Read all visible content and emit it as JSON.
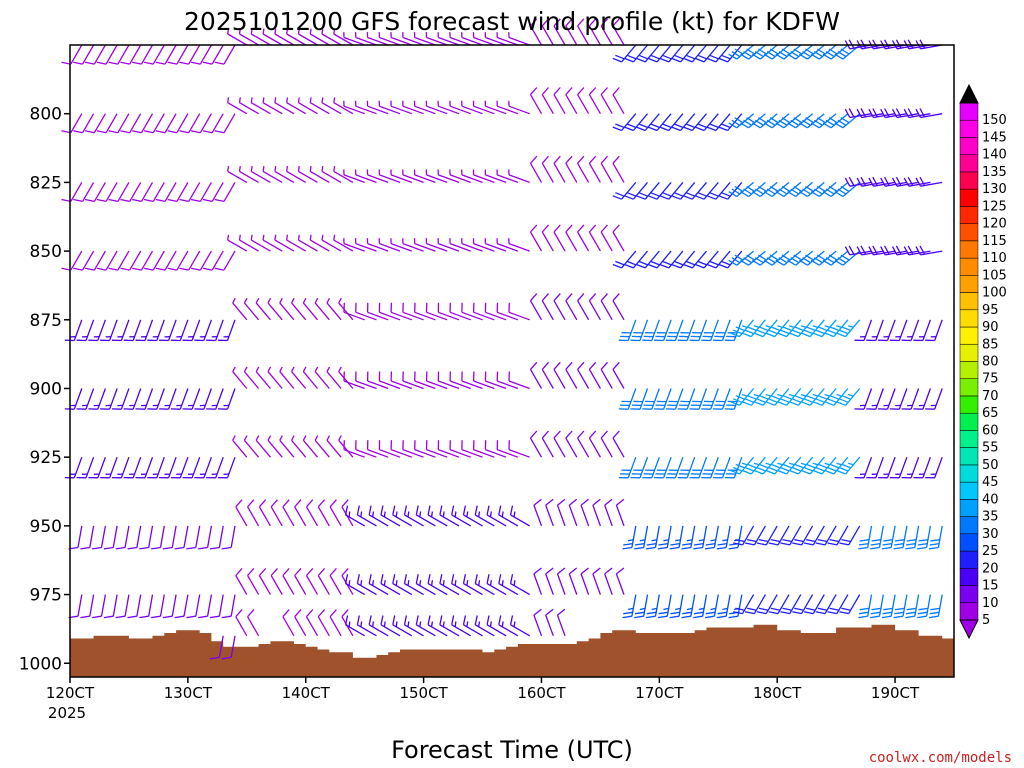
{
  "chart_data": {
    "type": "wind_barb_profile",
    "title": "2025101200 GFS forecast wind profile (kt) for KDFW",
    "xlabel": "Forecast Time (UTC)",
    "ylabel": "",
    "credit": "coolwx.com/models",
    "units": "kt",
    "x_range": [
      120,
      195
    ],
    "x_ticks": [
      {
        "value": 120,
        "label": "120CT",
        "sublabel": "2025"
      },
      {
        "value": 130,
        "label": "130CT"
      },
      {
        "value": 140,
        "label": "140CT"
      },
      {
        "value": 150,
        "label": "150CT"
      },
      {
        "value": 160,
        "label": "160CT"
      },
      {
        "value": 170,
        "label": "170CT"
      },
      {
        "value": 180,
        "label": "180CT"
      },
      {
        "value": 190,
        "label": "190CT"
      }
    ],
    "y_range_hpa": [
      775,
      1005
    ],
    "y_ticks": [
      800,
      825,
      850,
      875,
      900,
      925,
      950,
      975,
      1000
    ],
    "levels_hpa": [
      775,
      800,
      825,
      850,
      875,
      900,
      925,
      950,
      975,
      990
    ],
    "time_step": 1,
    "colorbar": {
      "levels": [
        5,
        10,
        15,
        20,
        25,
        30,
        35,
        40,
        45,
        50,
        55,
        60,
        65,
        70,
        75,
        80,
        85,
        90,
        95,
        100,
        105,
        110,
        115,
        120,
        125,
        130,
        135,
        140,
        145,
        150
      ],
      "colors": [
        "#a000e6",
        "#7a00f0",
        "#4b00f5",
        "#1e1eff",
        "#0050ff",
        "#0078ff",
        "#00a0ff",
        "#00c8ff",
        "#00dcdc",
        "#00e6b4",
        "#00f08c",
        "#00f050",
        "#32f000",
        "#78f000",
        "#b4f000",
        "#e6f000",
        "#fff000",
        "#ffdc00",
        "#ffc000",
        "#ffa000",
        "#ff8c00",
        "#ff7800",
        "#ff5000",
        "#ff2800",
        "#ff0000",
        "#ff0050",
        "#ff0096",
        "#ff00c8",
        "#ff00e6",
        "#e600ff"
      ]
    },
    "terrain": {
      "color": "#a0522d",
      "surface_pressure_hpa": [
        991,
        991,
        990,
        990,
        990,
        991,
        991,
        990,
        989,
        988,
        988,
        989,
        992,
        994,
        994,
        994,
        993,
        992,
        992,
        993,
        994,
        995,
        996,
        996,
        998,
        998,
        997,
        996,
        995,
        995,
        995,
        995,
        995,
        995,
        995,
        996,
        995,
        994,
        993,
        993,
        993,
        993,
        993,
        992,
        991,
        989,
        988,
        988,
        989,
        989,
        989,
        989,
        989,
        988,
        987,
        987,
        987,
        987,
        986,
        986,
        988,
        988,
        989,
        989,
        989,
        987,
        987,
        987,
        986,
        986,
        988,
        988,
        990,
        990,
        991,
        993
      ]
    },
    "barb_layers": [
      {
        "name": "upper",
        "levels": "775-850",
        "speed_kt_by_time_group": {
          "120-135": 8,
          "135-145": 4,
          "145-160": 6,
          "160-168": 8,
          "168-178": 20,
          "178-188": 30,
          "188-195": 18
        },
        "direction_deg_by_time_group": {
          "120-135": 210,
          "135-145": 300,
          "145-160": 290,
          "160-168": 330,
          "168-178": 220,
          "178-188": 230,
          "188-195": 260
        }
      },
      {
        "name": "middle",
        "levels": "875-925",
        "speed_kt_by_time_group": {
          "120-135": 15,
          "135-145": 6,
          "145-160": 8,
          "160-168": 12,
          "168-178": 30,
          "178-188": 35,
          "188-195": 15
        },
        "direction_deg_by_time_group": {
          "120-135": 200,
          "135-145": 320,
          "145-160": 290,
          "160-168": 330,
          "168-178": 200,
          "178-188": 220,
          "188-195": 200
        }
      },
      {
        "name": "lower",
        "levels": "950-990",
        "speed_kt_by_time_group": {
          "120-135": 12,
          "135-145": 8,
          "145-160": 15,
          "160-168": 12,
          "168-178": 25,
          "178-188": 20,
          "188-195": 30
        },
        "direction_deg_by_time_group": {
          "120-135": 190,
          "135-145": 330,
          "145-160": 300,
          "160-168": 340,
          "168-178": 190,
          "178-188": 210,
          "188-195": 190
        }
      }
    ]
  }
}
